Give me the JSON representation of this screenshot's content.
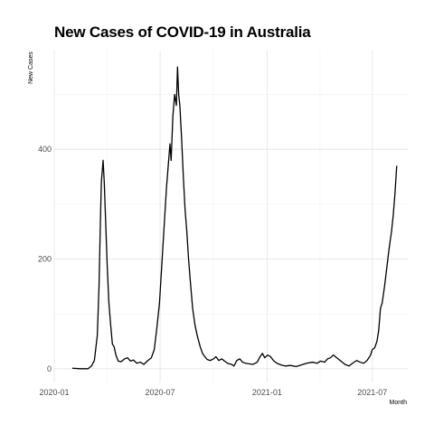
{
  "chart_data": {
    "type": "line",
    "title": "New Cases of COVID-19 in Australia",
    "xlabel": "Month",
    "ylabel": "New Cases",
    "x_ticks": [
      "2020-01",
      "2020-07",
      "2021-01",
      "2021-07"
    ],
    "y_ticks": [
      0,
      200,
      400
    ],
    "ylim": [
      -25,
      580
    ],
    "xlim": [
      "2020-01-01",
      "2021-08-31"
    ],
    "grid": true,
    "series": [
      {
        "color": "#000000",
        "points": [
          [
            "2020-02-01",
            1
          ],
          [
            "2020-02-15",
            0
          ],
          [
            "2020-02-28",
            0
          ],
          [
            "2020-03-05",
            5
          ],
          [
            "2020-03-10",
            15
          ],
          [
            "2020-03-15",
            60
          ],
          [
            "2020-03-18",
            150
          ],
          [
            "2020-03-20",
            250
          ],
          [
            "2020-03-22",
            340
          ],
          [
            "2020-03-25",
            380
          ],
          [
            "2020-03-27",
            340
          ],
          [
            "2020-03-29",
            280
          ],
          [
            "2020-04-01",
            190
          ],
          [
            "2020-04-04",
            120
          ],
          [
            "2020-04-07",
            80
          ],
          [
            "2020-04-10",
            45
          ],
          [
            "2020-04-13",
            40
          ],
          [
            "2020-04-16",
            25
          ],
          [
            "2020-04-20",
            14
          ],
          [
            "2020-04-25",
            13
          ],
          [
            "2020-05-01",
            18
          ],
          [
            "2020-05-06",
            20
          ],
          [
            "2020-05-11",
            14
          ],
          [
            "2020-05-16",
            16
          ],
          [
            "2020-05-22",
            10
          ],
          [
            "2020-05-28",
            12
          ],
          [
            "2020-06-03",
            8
          ],
          [
            "2020-06-10",
            15
          ],
          [
            "2020-06-16",
            20
          ],
          [
            "2020-06-21",
            35
          ],
          [
            "2020-06-25",
            70
          ],
          [
            "2020-06-30",
            120
          ],
          [
            "2020-07-04",
            190
          ],
          [
            "2020-07-08",
            260
          ],
          [
            "2020-07-12",
            330
          ],
          [
            "2020-07-15",
            370
          ],
          [
            "2020-07-18",
            410
          ],
          [
            "2020-07-20",
            380
          ],
          [
            "2020-07-23",
            460
          ],
          [
            "2020-07-26",
            500
          ],
          [
            "2020-07-29",
            480
          ],
          [
            "2020-07-31",
            550
          ],
          [
            "2020-08-02",
            500
          ],
          [
            "2020-08-04",
            480
          ],
          [
            "2020-08-07",
            420
          ],
          [
            "2020-08-10",
            350
          ],
          [
            "2020-08-13",
            290
          ],
          [
            "2020-08-16",
            250
          ],
          [
            "2020-08-19",
            200
          ],
          [
            "2020-08-22",
            160
          ],
          [
            "2020-08-26",
            110
          ],
          [
            "2020-08-30",
            80
          ],
          [
            "2020-09-03",
            60
          ],
          [
            "2020-09-08",
            40
          ],
          [
            "2020-09-12",
            28
          ],
          [
            "2020-09-16",
            22
          ],
          [
            "2020-09-20",
            17
          ],
          [
            "2020-09-25",
            15
          ],
          [
            "2020-10-01",
            18
          ],
          [
            "2020-10-05",
            22
          ],
          [
            "2020-10-10",
            15
          ],
          [
            "2020-10-15",
            18
          ],
          [
            "2020-10-20",
            14
          ],
          [
            "2020-10-25",
            10
          ],
          [
            "2020-11-01",
            8
          ],
          [
            "2020-11-05",
            5
          ],
          [
            "2020-11-10",
            15
          ],
          [
            "2020-11-15",
            18
          ],
          [
            "2020-11-20",
            12
          ],
          [
            "2020-11-25",
            10
          ],
          [
            "2020-12-01",
            9
          ],
          [
            "2020-12-08",
            8
          ],
          [
            "2020-12-15",
            12
          ],
          [
            "2020-12-20",
            22
          ],
          [
            "2020-12-24",
            28
          ],
          [
            "2020-12-28",
            20
          ],
          [
            "2021-01-02",
            25
          ],
          [
            "2021-01-07",
            22
          ],
          [
            "2021-01-12",
            15
          ],
          [
            "2021-01-18",
            10
          ],
          [
            "2021-01-25",
            7
          ],
          [
            "2021-02-01",
            5
          ],
          [
            "2021-02-10",
            6
          ],
          [
            "2021-02-20",
            4
          ],
          [
            "2021-03-01",
            7
          ],
          [
            "2021-03-10",
            10
          ],
          [
            "2021-03-20",
            12
          ],
          [
            "2021-03-28",
            10
          ],
          [
            "2021-04-03",
            14
          ],
          [
            "2021-04-10",
            12
          ],
          [
            "2021-04-15",
            18
          ],
          [
            "2021-04-20",
            20
          ],
          [
            "2021-04-25",
            25
          ],
          [
            "2021-05-01",
            20
          ],
          [
            "2021-05-08",
            14
          ],
          [
            "2021-05-15",
            8
          ],
          [
            "2021-05-22",
            5
          ],
          [
            "2021-05-28",
            10
          ],
          [
            "2021-06-04",
            15
          ],
          [
            "2021-06-10",
            12
          ],
          [
            "2021-06-16",
            10
          ],
          [
            "2021-06-22",
            15
          ],
          [
            "2021-06-28",
            25
          ],
          [
            "2021-07-01",
            35
          ],
          [
            "2021-07-05",
            38
          ],
          [
            "2021-07-09",
            50
          ],
          [
            "2021-07-12",
            70
          ],
          [
            "2021-07-15",
            110
          ],
          [
            "2021-07-18",
            120
          ],
          [
            "2021-07-22",
            150
          ],
          [
            "2021-07-26",
            185
          ],
          [
            "2021-07-30",
            220
          ],
          [
            "2021-08-03",
            250
          ],
          [
            "2021-08-06",
            280
          ],
          [
            "2021-08-09",
            320
          ],
          [
            "2021-08-12",
            370
          ]
        ]
      }
    ]
  }
}
